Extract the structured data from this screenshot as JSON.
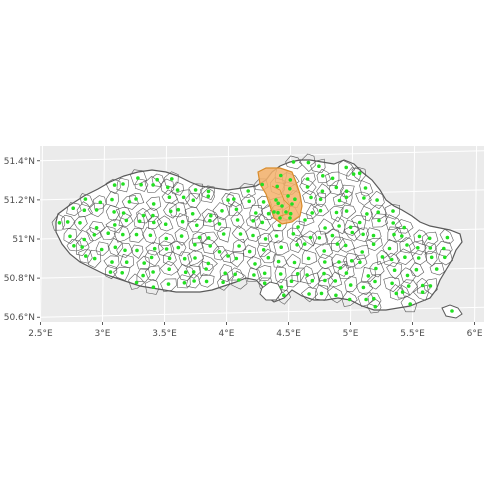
{
  "map": {
    "background_color": "#ebebeb",
    "gridline_color": "#ffffff",
    "region_fill": "#ffffff",
    "region_stroke": "#5a5a5a",
    "highlight_fill": "#f5b26b",
    "highlight_stroke": "#d98c2b",
    "point_color": "#22e022",
    "lon_ticks": [
      {
        "value": 2.5,
        "label": "2.5°E"
      },
      {
        "value": 3.0,
        "label": "3°E"
      },
      {
        "value": 3.5,
        "label": "3.5°E"
      },
      {
        "value": 4.0,
        "label": "4°E"
      },
      {
        "value": 4.5,
        "label": "4.5°E"
      },
      {
        "value": 5.0,
        "label": "5°E"
      },
      {
        "value": 5.5,
        "label": "5.5°E"
      },
      {
        "value": 6.0,
        "label": "6°E"
      }
    ],
    "lat_ticks": [
      {
        "value": 50.6,
        "label": "50.6°N"
      },
      {
        "value": 50.8,
        "label": "50.8°N"
      },
      {
        "value": 51.0,
        "label": "51°N"
      },
      {
        "value": 51.2,
        "label": "51.2°N"
      },
      {
        "value": 51.4,
        "label": "51.4°N"
      }
    ],
    "xlim": [
      2.48,
      6.06
    ],
    "ylim": [
      50.55,
      51.45
    ]
  }
}
